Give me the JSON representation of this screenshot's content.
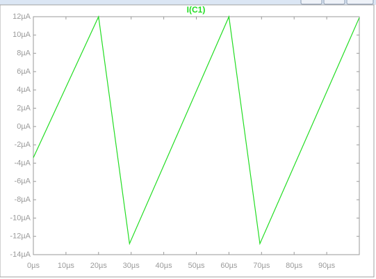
{
  "chart_data": {
    "type": "line",
    "x": [
      0,
      20,
      29.5,
      60,
      69.5,
      100
    ],
    "series": [
      {
        "name": "I(C1)",
        "color": "#22dd22",
        "values": [
          -3.4,
          12,
          -12.8,
          12,
          -12.8,
          11.9
        ]
      }
    ],
    "xlim": [
      0,
      100
    ],
    "xticks": [
      {
        "value": 0,
        "label": "0µs"
      },
      {
        "value": 10,
        "label": "10µs"
      },
      {
        "value": 20,
        "label": "20µs"
      },
      {
        "value": 30,
        "label": "30µs"
      },
      {
        "value": 40,
        "label": "40µs"
      },
      {
        "value": 50,
        "label": "50µs"
      },
      {
        "value": 60,
        "label": "60µs"
      },
      {
        "value": 70,
        "label": "70µs"
      },
      {
        "value": 80,
        "label": "80µs"
      },
      {
        "value": 90,
        "label": "90µs"
      }
    ],
    "ylim": [
      -14,
      12
    ],
    "yticks": [
      {
        "value": 12,
        "label": "12µA"
      },
      {
        "value": 10,
        "label": "10µA"
      },
      {
        "value": 8,
        "label": "8µA"
      },
      {
        "value": 6,
        "label": "6µA"
      },
      {
        "value": 4,
        "label": "4µA"
      },
      {
        "value": 2,
        "label": "2µA"
      },
      {
        "value": 0,
        "label": "0µA"
      },
      {
        "value": -2,
        "label": "-2µA"
      },
      {
        "value": -4,
        "label": "-4µA"
      },
      {
        "value": -6,
        "label": "-6µA"
      },
      {
        "value": -8,
        "label": "-8µA"
      },
      {
        "value": -10,
        "label": "-10µA"
      },
      {
        "value": -12,
        "label": "-12µA"
      },
      {
        "value": -14,
        "label": "-14µA"
      }
    ],
    "grid": false
  }
}
